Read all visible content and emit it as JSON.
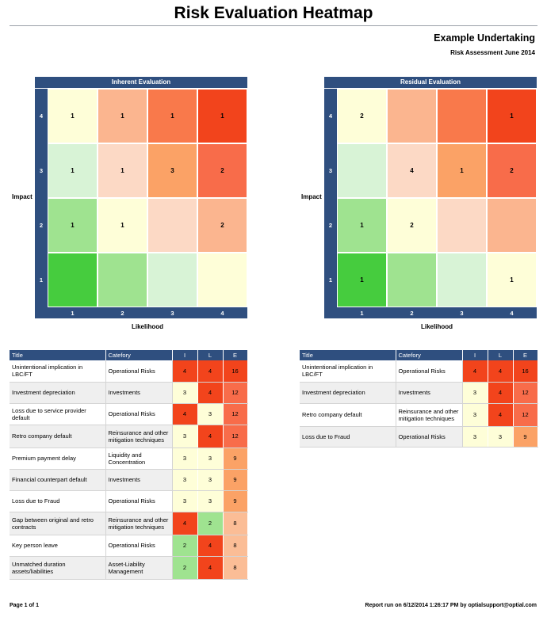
{
  "header": {
    "title": "Risk Evaluation Heatmap",
    "company": "Example Undertaking",
    "assessment": "Risk Assessment June 2014"
  },
  "palette": {
    "hm_4_1": "#fefed8",
    "hm_4_2": "#fbb58f",
    "hm_4_3": "#f9794b",
    "hm_4_4": "#f2441c",
    "hm_3_1": "#d8f3d6",
    "hm_3_2": "#fcd9c5",
    "hm_3_3": "#fba266",
    "hm_3_4": "#f86c4a",
    "hm_2_1": "#9fe390",
    "hm_2_2": "#fefed8",
    "hm_2_3": "#fcd9c5",
    "hm_2_4": "#fbb58f",
    "hm_1_1": "#46cc3e",
    "hm_1_2": "#9fe390",
    "hm_1_3": "#d8f3d6",
    "hm_1_4": "#fefed8",
    "score_4": "#f2441c",
    "score_3": "#fefed8",
    "score_2": "#9fe390",
    "e_16": "#f2441c",
    "e_12": "#f86c4a",
    "e_9": "#fba266",
    "e_8": "#fbbd96",
    "header_bar": "#2f4f7f"
  },
  "heatmaps": [
    {
      "title": "Inherent Evaluation",
      "y_axis_label": "Impact",
      "x_axis_label": "Likelihood",
      "impact_levels": [
        "4",
        "3",
        "2",
        "1"
      ],
      "likelihood_levels": [
        "1",
        "2",
        "3",
        "4"
      ],
      "counts": [
        [
          "1",
          "1",
          "1",
          "1"
        ],
        [
          "1",
          "1",
          "3",
          "2"
        ],
        [
          "1",
          "1",
          "",
          "2"
        ],
        [
          "",
          "",
          "",
          ""
        ]
      ]
    },
    {
      "title": "Residual Evaluation",
      "y_axis_label": "Impact",
      "x_axis_label": "Likelihood",
      "impact_levels": [
        "4",
        "3",
        "2",
        "1"
      ],
      "likelihood_levels": [
        "1",
        "2",
        "3",
        "4"
      ],
      "counts": [
        [
          "2",
          "",
          "",
          "1"
        ],
        [
          "",
          "4",
          "1",
          "2"
        ],
        [
          "1",
          "2",
          "",
          ""
        ],
        [
          "1",
          "",
          "",
          "1"
        ]
      ]
    }
  ],
  "inherent_table": {
    "headers": [
      "Title",
      "Catefory",
      "I",
      "L",
      "E"
    ],
    "rows": [
      [
        "Unintentional implication in LBC/FT",
        "Operational Risks",
        "4",
        "4",
        "16"
      ],
      [
        "Investment depreciation",
        "Investments",
        "3",
        "4",
        "12"
      ],
      [
        "Loss due to service provider default",
        "Operational Risks",
        "4",
        "3",
        "12"
      ],
      [
        "Retro company default",
        "Reinsurance and other mitigation techniques",
        "3",
        "4",
        "12"
      ],
      [
        "Premium payment delay",
        "Liquidity and Concentration",
        "3",
        "3",
        "9"
      ],
      [
        "Financial counterpart default",
        "Investments",
        "3",
        "3",
        "9"
      ],
      [
        "Loss due to Fraud",
        "Operational Risks",
        "3",
        "3",
        "9"
      ],
      [
        "Gap between original and retro contracts",
        "Reinsurance and other mitigation techniques",
        "4",
        "2",
        "8"
      ],
      [
        "Key person leave",
        "Operational Risks",
        "2",
        "4",
        "8"
      ],
      [
        "Unmatched duration assets/liabilities",
        "Asset-Liability Management",
        "2",
        "4",
        "8"
      ]
    ]
  },
  "residual_table": {
    "headers": [
      "Title",
      "Catefory",
      "I",
      "L",
      "E"
    ],
    "rows": [
      [
        "Unintentional implication in LBC/FT",
        "Operational Risks",
        "4",
        "4",
        "16"
      ],
      [
        "Investment depreciation",
        "Investments",
        "3",
        "4",
        "12"
      ],
      [
        "Retro company default",
        "Reinsurance and other mitigation techniques",
        "3",
        "4",
        "12"
      ],
      [
        "Loss due to Fraud",
        "Operational Risks",
        "3",
        "3",
        "9"
      ]
    ]
  },
  "footer": {
    "page": "Page 1 of 1",
    "run_info": "Report run on 6/12/2014 1:26:17 PM by optialsupport@optial.com"
  }
}
